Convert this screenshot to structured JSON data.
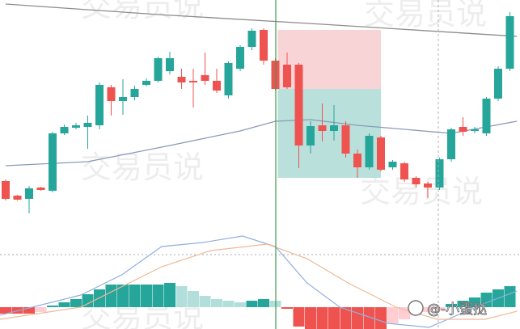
{
  "chart_data": {
    "type": "candlestick",
    "ylim": [
      -10,
      260
    ],
    "up_color": "#26a69a",
    "down_color": "#ef5350",
    "candles": {
      "open": [
        36,
        18,
        14,
        28,
        24,
        95,
        102,
        103,
        105,
        152,
        135,
        140,
        155,
        160,
        172,
        165,
        160,
        167,
        160,
        142,
        175,
        202,
        223,
        185,
        180,
        180,
        80,
        105,
        98,
        105,
        70,
        53,
        90,
        53,
        58,
        40,
        33,
        28,
        63,
        103,
        98,
        95,
        138,
        175
      ],
      "high": [
        38,
        19,
        30,
        29,
        97,
        106,
        108,
        117,
        158,
        155,
        162,
        154,
        163,
        190,
        196,
        175,
        175,
        195,
        175,
        184,
        204,
        225,
        225,
        188,
        195,
        182,
        110,
        132,
        130,
        110,
        75,
        95,
        92,
        62,
        60,
        42,
        35,
        65,
        102,
        115,
        103,
        140,
        178,
        245
      ],
      "low": [
        12,
        12,
        -4,
        24,
        22,
        93,
        100,
        76,
        100,
        117,
        118,
        136,
        153,
        158,
        168,
        150,
        127,
        155,
        145,
        138,
        172,
        198,
        180,
        148,
        150,
        52,
        70,
        85,
        86,
        65,
        40,
        50,
        48,
        50,
        35,
        28,
        15,
        25,
        60,
        92,
        95,
        92,
        135,
        172
      ],
      "close": [
        14,
        13,
        27,
        25,
        95,
        103,
        105,
        108,
        155,
        135,
        140,
        150,
        160,
        188,
        188,
        158,
        158,
        160,
        148,
        182,
        202,
        222,
        185,
        150,
        152,
        80,
        104,
        98,
        105,
        70,
        53,
        92,
        50,
        60,
        38,
        32,
        28,
        63,
        100,
        97,
        100,
        138,
        175,
        240
      ]
    },
    "ma_lines": [
      {
        "color": "#8c8c8c",
        "x": [
          0,
          13,
          27,
          43.6
        ],
        "values": [
          255,
          242,
          230,
          215
        ]
      },
      {
        "color": "#8a9bb8",
        "x": [
          0,
          7,
          14,
          20,
          23,
          26,
          30,
          38,
          43.6
        ],
        "values": [
          55,
          60,
          80,
          98,
          110,
          112,
          105,
          95,
          110
        ]
      }
    ],
    "position": {
      "start": 23.2,
      "end": 32,
      "entry": 150,
      "stop": 223,
      "target": 40,
      "stop_color": "#f8c9cc",
      "target_color": "#a8d8d2"
    },
    "oscillator": {
      "ylim": [
        -27,
        90
      ],
      "hline": 65,
      "histogram": [
        -8,
        -8,
        -8,
        -6,
        2,
        6,
        10,
        16,
        22,
        28,
        28,
        28,
        28,
        28,
        30,
        26,
        20,
        14,
        10,
        8,
        6,
        8,
        10,
        8,
        -2,
        -24,
        -27,
        -27,
        -27,
        -27,
        -27,
        -27,
        -27,
        -20,
        -15,
        -10,
        -6,
        -3,
        4,
        8,
        12,
        18,
        22,
        26
      ],
      "colors": {
        "pos_up": "#26a69a",
        "pos_down": "#b2dfdb",
        "neg_down": "#ef5350",
        "neg_up": "#ffcdd2"
      },
      "lines": [
        {
          "color": "#8fb0e0",
          "x": [
            -0.5,
            6.4,
            9.9,
            13.3,
            16.8,
            20.2,
            23,
            25.7,
            28.5,
            32.6,
            36.1,
            40.9,
            43.6
          ],
          "values": [
            -10,
            15,
            40,
            75,
            80,
            88,
            75,
            30,
            0,
            -20,
            -25,
            5,
            20
          ]
        },
        {
          "color": "#f0b896",
          "x": [
            -0.5,
            6.4,
            13.3,
            17.5,
            22.3,
            25.7,
            29.2,
            33.3,
            36.8,
            40.9,
            43.6
          ],
          "values": [
            -15,
            0,
            50,
            70,
            78,
            60,
            30,
            0,
            -15,
            -15,
            -5
          ]
        }
      ]
    },
    "watermark": "交易员说",
    "signature": "@-小蛋挞"
  }
}
